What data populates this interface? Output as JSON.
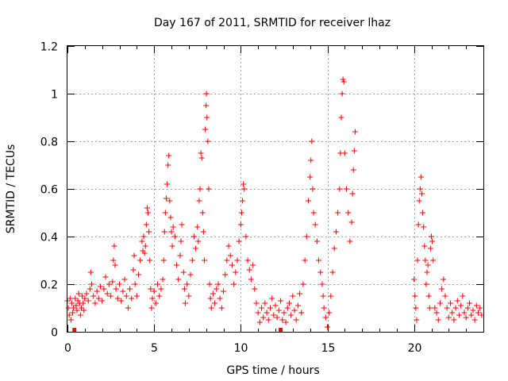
{
  "chart_data": {
    "type": "scatter",
    "title": "Day 167 of 2011, SRMTID for receiver lhaz",
    "xlabel": "GPS time / hours",
    "ylabel": "SRMTID / TECUs",
    "xlim": [
      0,
      24
    ],
    "ylim": [
      0,
      1.2
    ],
    "xticks": [
      0,
      5,
      10,
      15,
      20
    ],
    "xtick_labels": [
      "0",
      "5",
      "10",
      "15",
      "20"
    ],
    "yticks": [
      0,
      0.2,
      0.4,
      0.6,
      0.8,
      1,
      1.2
    ],
    "ytick_labels": [
      "0",
      "0.2",
      "0.4",
      "0.6",
      "0.8",
      "1",
      "1.2"
    ],
    "grid": true,
    "marker": "plus",
    "color": "#ff0000",
    "series": [
      {
        "name": "SRMTID",
        "points": [
          [
            0.0,
            0.13
          ],
          [
            0.05,
            0.1
          ],
          [
            0.1,
            0.07
          ],
          [
            0.15,
            0.14
          ],
          [
            0.2,
            0.05
          ],
          [
            0.25,
            0.12
          ],
          [
            0.3,
            0.08
          ],
          [
            0.35,
            0.1
          ],
          [
            0.45,
            0.14
          ],
          [
            0.5,
            0.11
          ],
          [
            0.55,
            0.09
          ],
          [
            0.6,
            0.13
          ],
          [
            0.65,
            0.16
          ],
          [
            0.7,
            0.12
          ],
          [
            0.75,
            0.07
          ],
          [
            0.8,
            0.1
          ],
          [
            0.85,
            0.15
          ],
          [
            0.9,
            0.12
          ],
          [
            0.95,
            0.09
          ],
          [
            1.0,
            0.14
          ],
          [
            1.1,
            0.16
          ],
          [
            1.2,
            0.13
          ],
          [
            1.3,
            0.18
          ],
          [
            1.35,
            0.25
          ],
          [
            1.4,
            0.2
          ],
          [
            1.5,
            0.15
          ],
          [
            1.6,
            0.12
          ],
          [
            1.7,
            0.17
          ],
          [
            1.8,
            0.14
          ],
          [
            1.9,
            0.19
          ],
          [
            2.0,
            0.13
          ],
          [
            2.1,
            0.18
          ],
          [
            2.2,
            0.23
          ],
          [
            2.3,
            0.16
          ],
          [
            2.4,
            0.2
          ],
          [
            2.5,
            0.15
          ],
          [
            2.6,
            0.21
          ],
          [
            2.65,
            0.3
          ],
          [
            2.7,
            0.36
          ],
          [
            2.75,
            0.28
          ],
          [
            2.8,
            0.18
          ],
          [
            2.9,
            0.14
          ],
          [
            3.0,
            0.2
          ],
          [
            3.1,
            0.13
          ],
          [
            3.2,
            0.17
          ],
          [
            3.3,
            0.22
          ],
          [
            3.4,
            0.15
          ],
          [
            3.5,
            0.1
          ],
          [
            3.6,
            0.18
          ],
          [
            3.7,
            0.14
          ],
          [
            3.8,
            0.26
          ],
          [
            3.85,
            0.32
          ],
          [
            3.9,
            0.2
          ],
          [
            4.0,
            0.15
          ],
          [
            4.1,
            0.24
          ],
          [
            4.2,
            0.3
          ],
          [
            4.3,
            0.38
          ],
          [
            4.35,
            0.34
          ],
          [
            4.4,
            0.4
          ],
          [
            4.45,
            0.33
          ],
          [
            4.5,
            0.36
          ],
          [
            4.55,
            0.45
          ],
          [
            4.6,
            0.52
          ],
          [
            4.65,
            0.5
          ],
          [
            4.7,
            0.42
          ],
          [
            4.75,
            0.3
          ],
          [
            4.8,
            0.18
          ],
          [
            4.85,
            0.1
          ],
          [
            4.9,
            0.14
          ],
          [
            5.0,
            0.17
          ],
          [
            5.1,
            0.12
          ],
          [
            5.2,
            0.2
          ],
          [
            5.3,
            0.15
          ],
          [
            5.4,
            0.18
          ],
          [
            5.5,
            0.22
          ],
          [
            5.55,
            0.3
          ],
          [
            5.6,
            0.42
          ],
          [
            5.65,
            0.5
          ],
          [
            5.7,
            0.56
          ],
          [
            5.75,
            0.62
          ],
          [
            5.8,
            0.7
          ],
          [
            5.85,
            0.74
          ],
          [
            5.9,
            0.55
          ],
          [
            5.95,
            0.48
          ],
          [
            6.0,
            0.42
          ],
          [
            6.05,
            0.36
          ],
          [
            6.1,
            0.44
          ],
          [
            6.2,
            0.4
          ],
          [
            6.3,
            0.28
          ],
          [
            6.4,
            0.22
          ],
          [
            6.5,
            0.32
          ],
          [
            6.55,
            0.38
          ],
          [
            6.6,
            0.45
          ],
          [
            6.7,
            0.25
          ],
          [
            6.75,
            0.18
          ],
          [
            6.8,
            0.12
          ],
          [
            6.9,
            0.2
          ],
          [
            7.0,
            0.15
          ],
          [
            7.1,
            0.24
          ],
          [
            7.2,
            0.3
          ],
          [
            7.3,
            0.4
          ],
          [
            7.4,
            0.35
          ],
          [
            7.5,
            0.44
          ],
          [
            7.55,
            0.38
          ],
          [
            7.6,
            0.55
          ],
          [
            7.65,
            0.6
          ],
          [
            7.7,
            0.75
          ],
          [
            7.75,
            0.73
          ],
          [
            7.8,
            0.5
          ],
          [
            7.85,
            0.42
          ],
          [
            7.9,
            0.3
          ],
          [
            7.95,
            0.85
          ],
          [
            8.0,
            0.95
          ],
          [
            8.02,
            1.0
          ],
          [
            8.05,
            0.9
          ],
          [
            8.1,
            0.8
          ],
          [
            8.15,
            0.6
          ],
          [
            8.2,
            0.2
          ],
          [
            8.25,
            0.14
          ],
          [
            8.3,
            0.1
          ],
          [
            8.4,
            0.16
          ],
          [
            8.5,
            0.12
          ],
          [
            8.6,
            0.18
          ],
          [
            8.7,
            0.2
          ],
          [
            8.8,
            0.14
          ],
          [
            8.9,
            0.1
          ],
          [
            9.0,
            0.17
          ],
          [
            9.1,
            0.24
          ],
          [
            9.2,
            0.3
          ],
          [
            9.3,
            0.36
          ],
          [
            9.4,
            0.32
          ],
          [
            9.5,
            0.28
          ],
          [
            9.6,
            0.2
          ],
          [
            9.7,
            0.25
          ],
          [
            9.8,
            0.3
          ],
          [
            9.9,
            0.38
          ],
          [
            10.0,
            0.45
          ],
          [
            10.05,
            0.5
          ],
          [
            10.1,
            0.55
          ],
          [
            10.15,
            0.62
          ],
          [
            10.2,
            0.6
          ],
          [
            10.3,
            0.4
          ],
          [
            10.4,
            0.3
          ],
          [
            10.5,
            0.26
          ],
          [
            10.6,
            0.22
          ],
          [
            10.7,
            0.28
          ],
          [
            10.8,
            0.18
          ],
          [
            10.9,
            0.12
          ],
          [
            11.0,
            0.08
          ],
          [
            11.1,
            0.04
          ],
          [
            11.2,
            0.1
          ],
          [
            11.3,
            0.06
          ],
          [
            11.4,
            0.12
          ],
          [
            11.5,
            0.08
          ],
          [
            11.6,
            0.05
          ],
          [
            11.7,
            0.1
          ],
          [
            11.8,
            0.14
          ],
          [
            11.9,
            0.07
          ],
          [
            12.0,
            0.11
          ],
          [
            12.1,
            0.06
          ],
          [
            12.2,
            0.09
          ],
          [
            12.3,
            0.13
          ],
          [
            12.4,
            0.05
          ],
          [
            12.5,
            0.08
          ],
          [
            12.6,
            0.04
          ],
          [
            12.7,
            0.1
          ],
          [
            12.8,
            0.12
          ],
          [
            12.9,
            0.07
          ],
          [
            13.0,
            0.15
          ],
          [
            13.1,
            0.09
          ],
          [
            13.2,
            0.05
          ],
          [
            13.3,
            0.11
          ],
          [
            13.4,
            0.16
          ],
          [
            13.5,
            0.08
          ],
          [
            13.6,
            0.2
          ],
          [
            13.7,
            0.3
          ],
          [
            13.8,
            0.4
          ],
          [
            13.9,
            0.55
          ],
          [
            14.0,
            0.65
          ],
          [
            14.05,
            0.72
          ],
          [
            14.1,
            0.8
          ],
          [
            14.15,
            0.6
          ],
          [
            14.2,
            0.5
          ],
          [
            14.3,
            0.45
          ],
          [
            14.4,
            0.38
          ],
          [
            14.5,
            0.3
          ],
          [
            14.6,
            0.25
          ],
          [
            14.7,
            0.2
          ],
          [
            14.75,
            0.15
          ],
          [
            14.8,
            0.1
          ],
          [
            14.9,
            0.06
          ],
          [
            15.0,
            0.02
          ],
          [
            15.1,
            0.08
          ],
          [
            15.2,
            0.15
          ],
          [
            15.3,
            0.25
          ],
          [
            15.4,
            0.35
          ],
          [
            15.5,
            0.42
          ],
          [
            15.6,
            0.5
          ],
          [
            15.7,
            0.6
          ],
          [
            15.75,
            0.75
          ],
          [
            15.8,
            0.9
          ],
          [
            15.85,
            1.0
          ],
          [
            15.9,
            1.06
          ],
          [
            15.95,
            1.05
          ],
          [
            16.0,
            0.75
          ],
          [
            16.1,
            0.6
          ],
          [
            16.2,
            0.5
          ],
          [
            16.3,
            0.38
          ],
          [
            16.4,
            0.46
          ],
          [
            16.45,
            0.58
          ],
          [
            16.5,
            0.68
          ],
          [
            16.55,
            0.76
          ],
          [
            16.6,
            0.84
          ],
          [
            20.0,
            0.22
          ],
          [
            20.05,
            0.15
          ],
          [
            20.1,
            0.1
          ],
          [
            20.15,
            0.05
          ],
          [
            20.2,
            0.3
          ],
          [
            20.25,
            0.45
          ],
          [
            20.3,
            0.55
          ],
          [
            20.35,
            0.6
          ],
          [
            20.4,
            0.65
          ],
          [
            20.45,
            0.58
          ],
          [
            20.5,
            0.5
          ],
          [
            20.55,
            0.44
          ],
          [
            20.6,
            0.36
          ],
          [
            20.65,
            0.3
          ],
          [
            20.7,
            0.2
          ],
          [
            20.75,
            0.25
          ],
          [
            20.8,
            0.28
          ],
          [
            20.85,
            0.15
          ],
          [
            20.9,
            0.1
          ],
          [
            20.95,
            0.35
          ],
          [
            21.0,
            0.4
          ],
          [
            21.05,
            0.38
          ],
          [
            21.1,
            0.3
          ],
          [
            21.2,
            0.1
          ],
          [
            21.3,
            0.08
          ],
          [
            21.4,
            0.05
          ],
          [
            21.5,
            0.12
          ],
          [
            21.6,
            0.18
          ],
          [
            21.7,
            0.22
          ],
          [
            21.8,
            0.15
          ],
          [
            21.9,
            0.1
          ],
          [
            22.0,
            0.06
          ],
          [
            22.1,
            0.12
          ],
          [
            22.2,
            0.08
          ],
          [
            22.3,
            0.05
          ],
          [
            22.4,
            0.1
          ],
          [
            22.5,
            0.13
          ],
          [
            22.6,
            0.07
          ],
          [
            22.7,
            0.11
          ],
          [
            22.8,
            0.15
          ],
          [
            22.9,
            0.08
          ],
          [
            23.0,
            0.06
          ],
          [
            23.1,
            0.1
          ],
          [
            23.2,
            0.12
          ],
          [
            23.3,
            0.07
          ],
          [
            23.4,
            0.09
          ],
          [
            23.5,
            0.05
          ],
          [
            23.6,
            0.11
          ],
          [
            23.7,
            0.08
          ],
          [
            23.8,
            0.1
          ],
          [
            23.9,
            0.07
          ]
        ],
        "square_points": [
          [
            0.4,
            0.0
          ],
          [
            12.3,
            0.0
          ]
        ]
      }
    ]
  }
}
